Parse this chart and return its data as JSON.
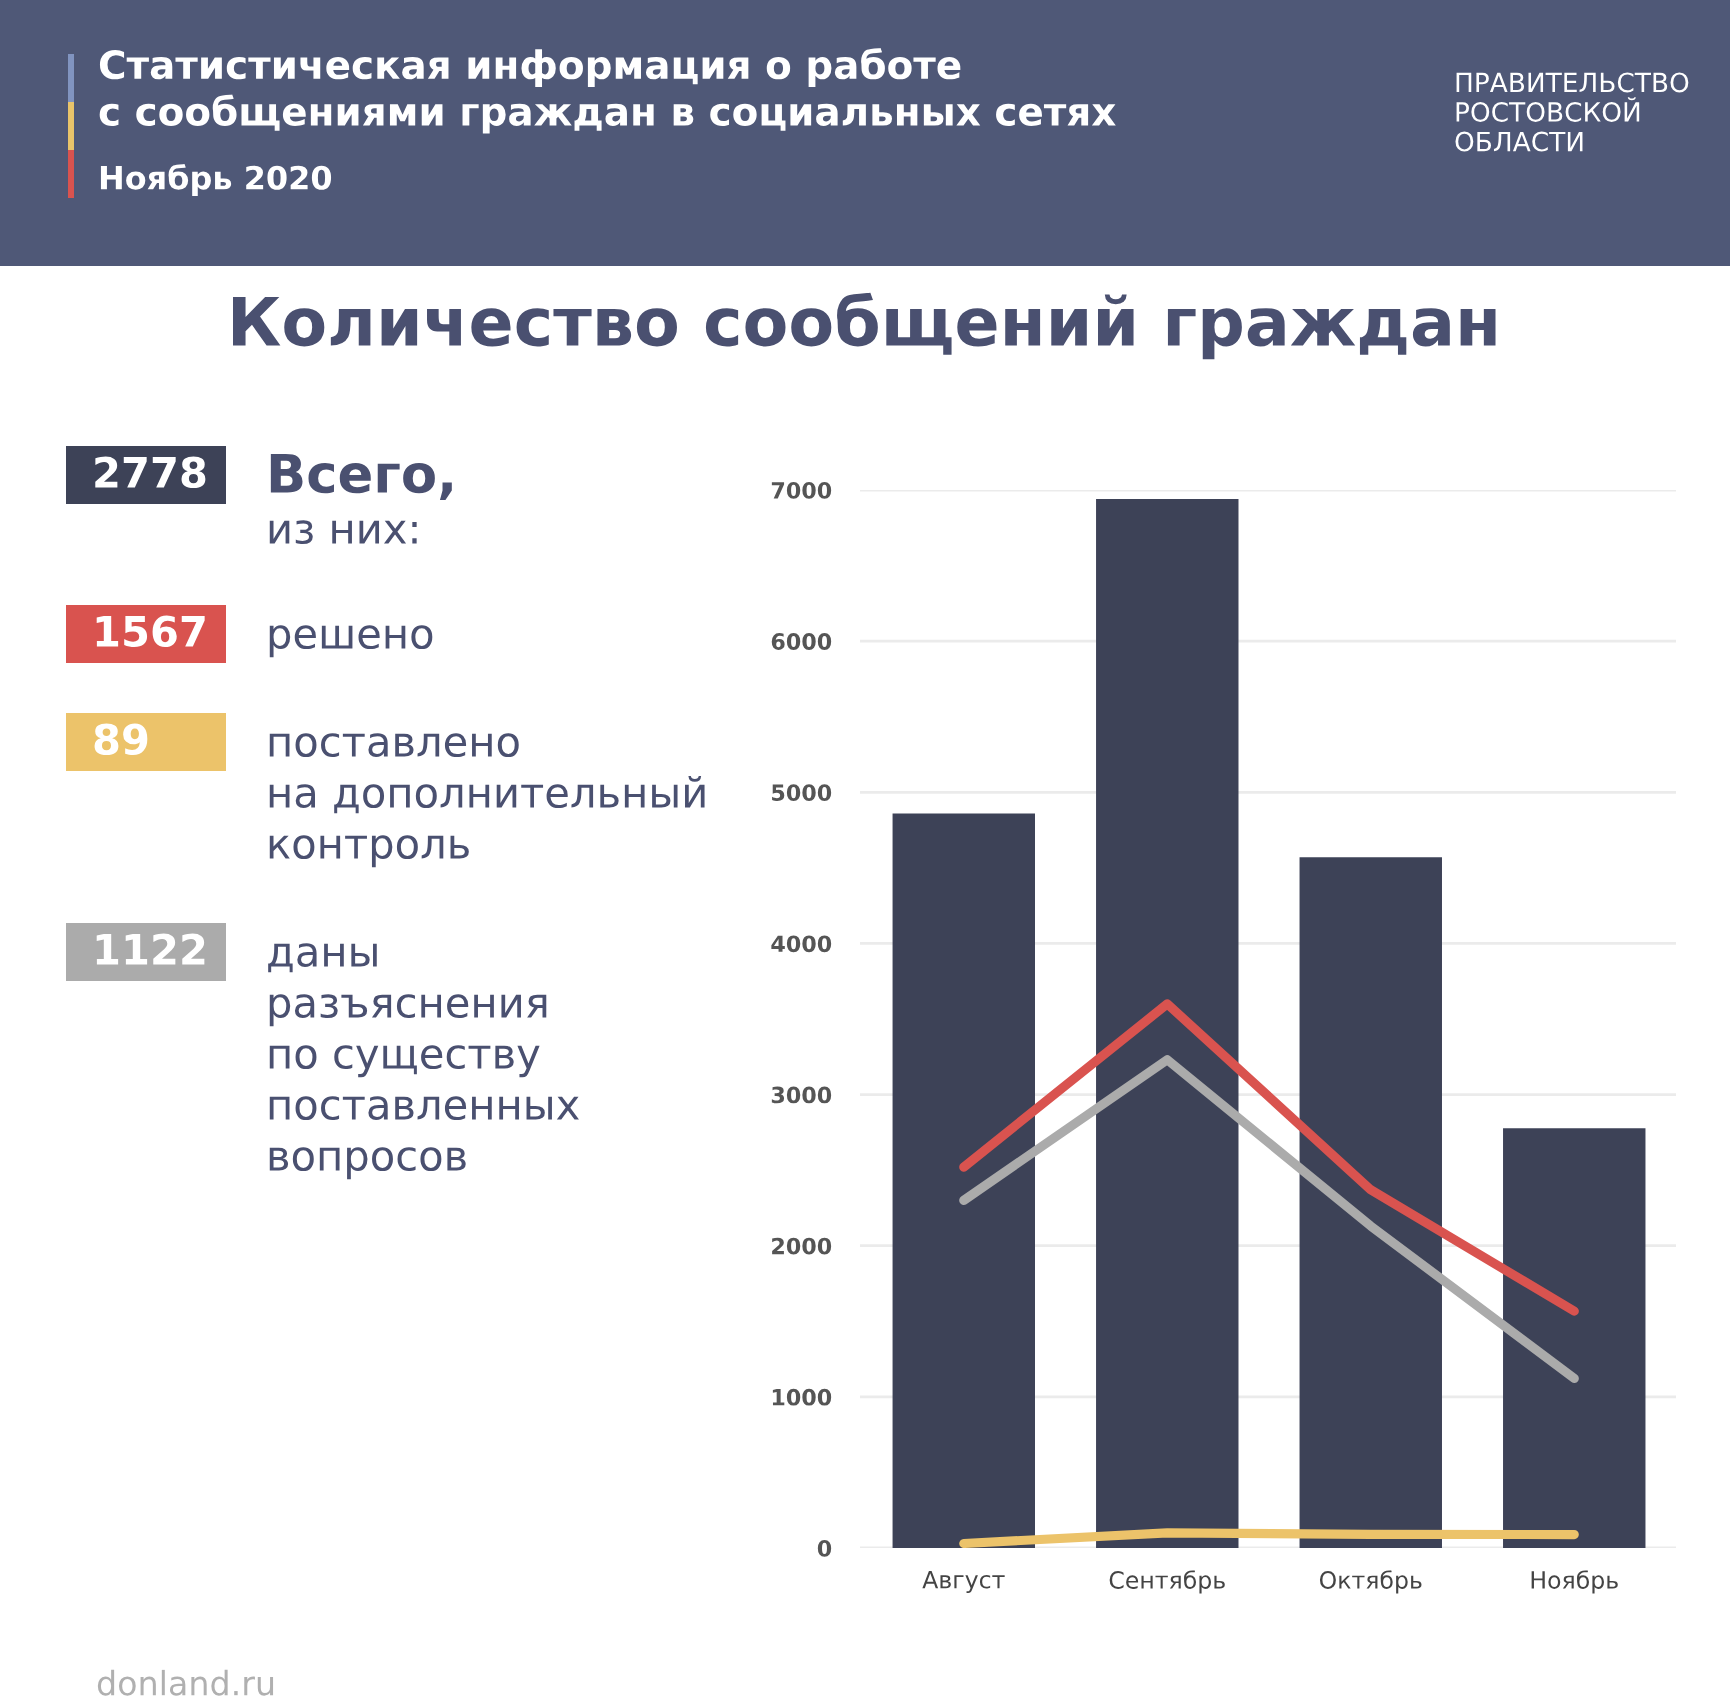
{
  "chart_data": [
    {
      "type": "other",
      "title": "Статистическая информация о работе\nс сообщениями граждан в социальных сетях",
      "subtitle": "Ноябрь 2020",
      "annotations": [
        "ПРАВИТЕЛЬСТВО\nРОСТОВСКОЙ\nОБЛАСТИ"
      ]
    },
    {
      "type": "bar",
      "title": "Количество сообщений граждан",
      "categories": [
        "Август",
        "Сентябрь",
        "Октябрь",
        "Ноябрь"
      ],
      "series": [
        {
          "type": "bar",
          "color": "#3d4257",
          "values": [
            4860,
            6940,
            4570,
            2778
          ]
        },
        {
          "type": "line",
          "color": "#d9534f",
          "values": [
            2520,
            3600,
            2370,
            1567
          ]
        },
        {
          "type": "line",
          "color": "#ababab",
          "values": [
            2300,
            3230,
            2130,
            1122
          ]
        },
        {
          "type": "line",
          "color": "#ecc36a",
          "values": [
            30,
            100,
            90,
            89
          ]
        }
      ],
      "ylim": [
        0,
        7000
      ],
      "yticks": [
        0,
        1000,
        2000,
        3000,
        4000,
        5000,
        6000,
        7000
      ],
      "grid": "y",
      "annotations": [
        "donland.ru"
      ]
    },
    {
      "type": "other",
      "annotations": [
        "2778",
        "Всего,\nиз них:",
        "1567",
        "решено",
        "89",
        "поставлено\nна дополнительный\nконтроль",
        "1122",
        "даны\nразъяснения\nпо существу\nпоставленных\nвопросов"
      ],
      "colors": [
        "#3d4257",
        "#d9534f",
        "#ecc36a",
        "#ababab"
      ]
    }
  ]
}
